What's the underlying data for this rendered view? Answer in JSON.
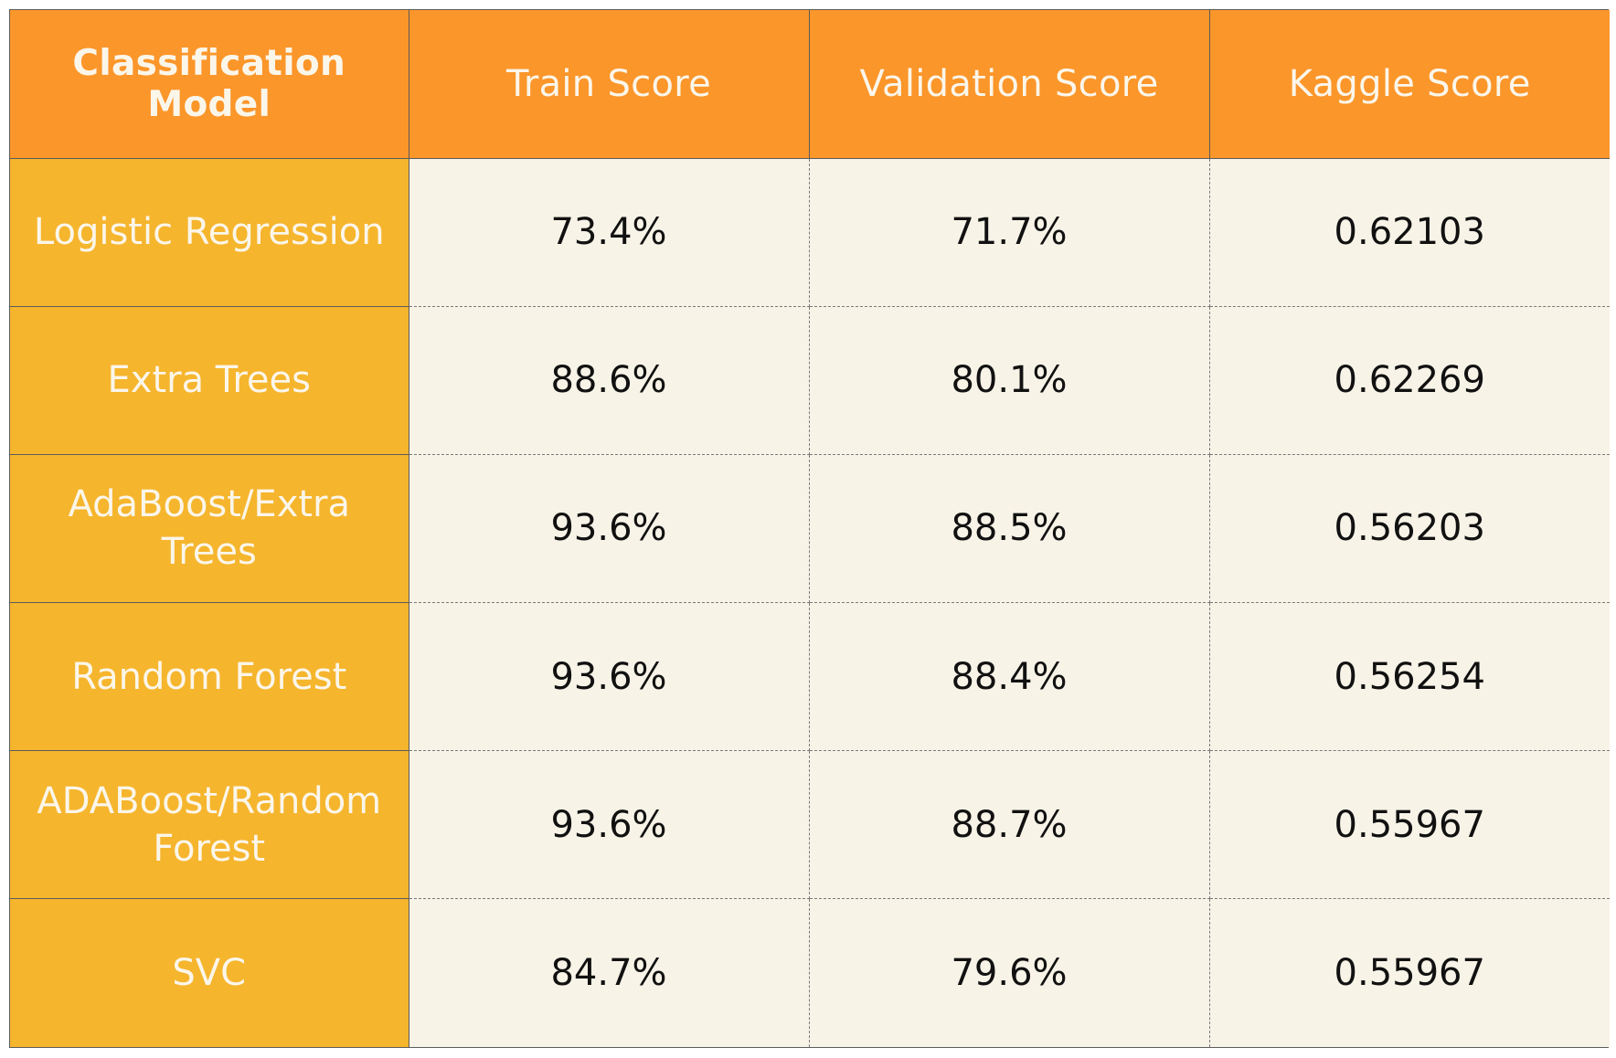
{
  "chart_data": {
    "type": "table",
    "columns": [
      "Classification Model",
      "Train Score",
      "Validation Score",
      "Kaggle Score"
    ],
    "rows": [
      [
        "Logistic Regression",
        "73.4%",
        "71.7%",
        "0.62103"
      ],
      [
        "Extra Trees",
        "88.6%",
        "80.1%",
        "0.62269"
      ],
      [
        "AdaBoost/Extra Trees",
        "93.6%",
        "88.5%",
        "0.56203"
      ],
      [
        "Random Forest",
        "93.6%",
        "88.4%",
        "0.56254"
      ],
      [
        "ADABoost/Random Forest",
        "93.6%",
        "88.7%",
        "0.55967"
      ],
      [
        "SVC",
        "84.7%",
        "79.6%",
        "0.55967"
      ]
    ]
  },
  "colors": {
    "header_bg": "#fb962a",
    "model_column_bg": "#f5b52d",
    "cell_bg": "#f8f3e7",
    "header_text": "#fbf6ea",
    "cell_text": "#111111"
  }
}
